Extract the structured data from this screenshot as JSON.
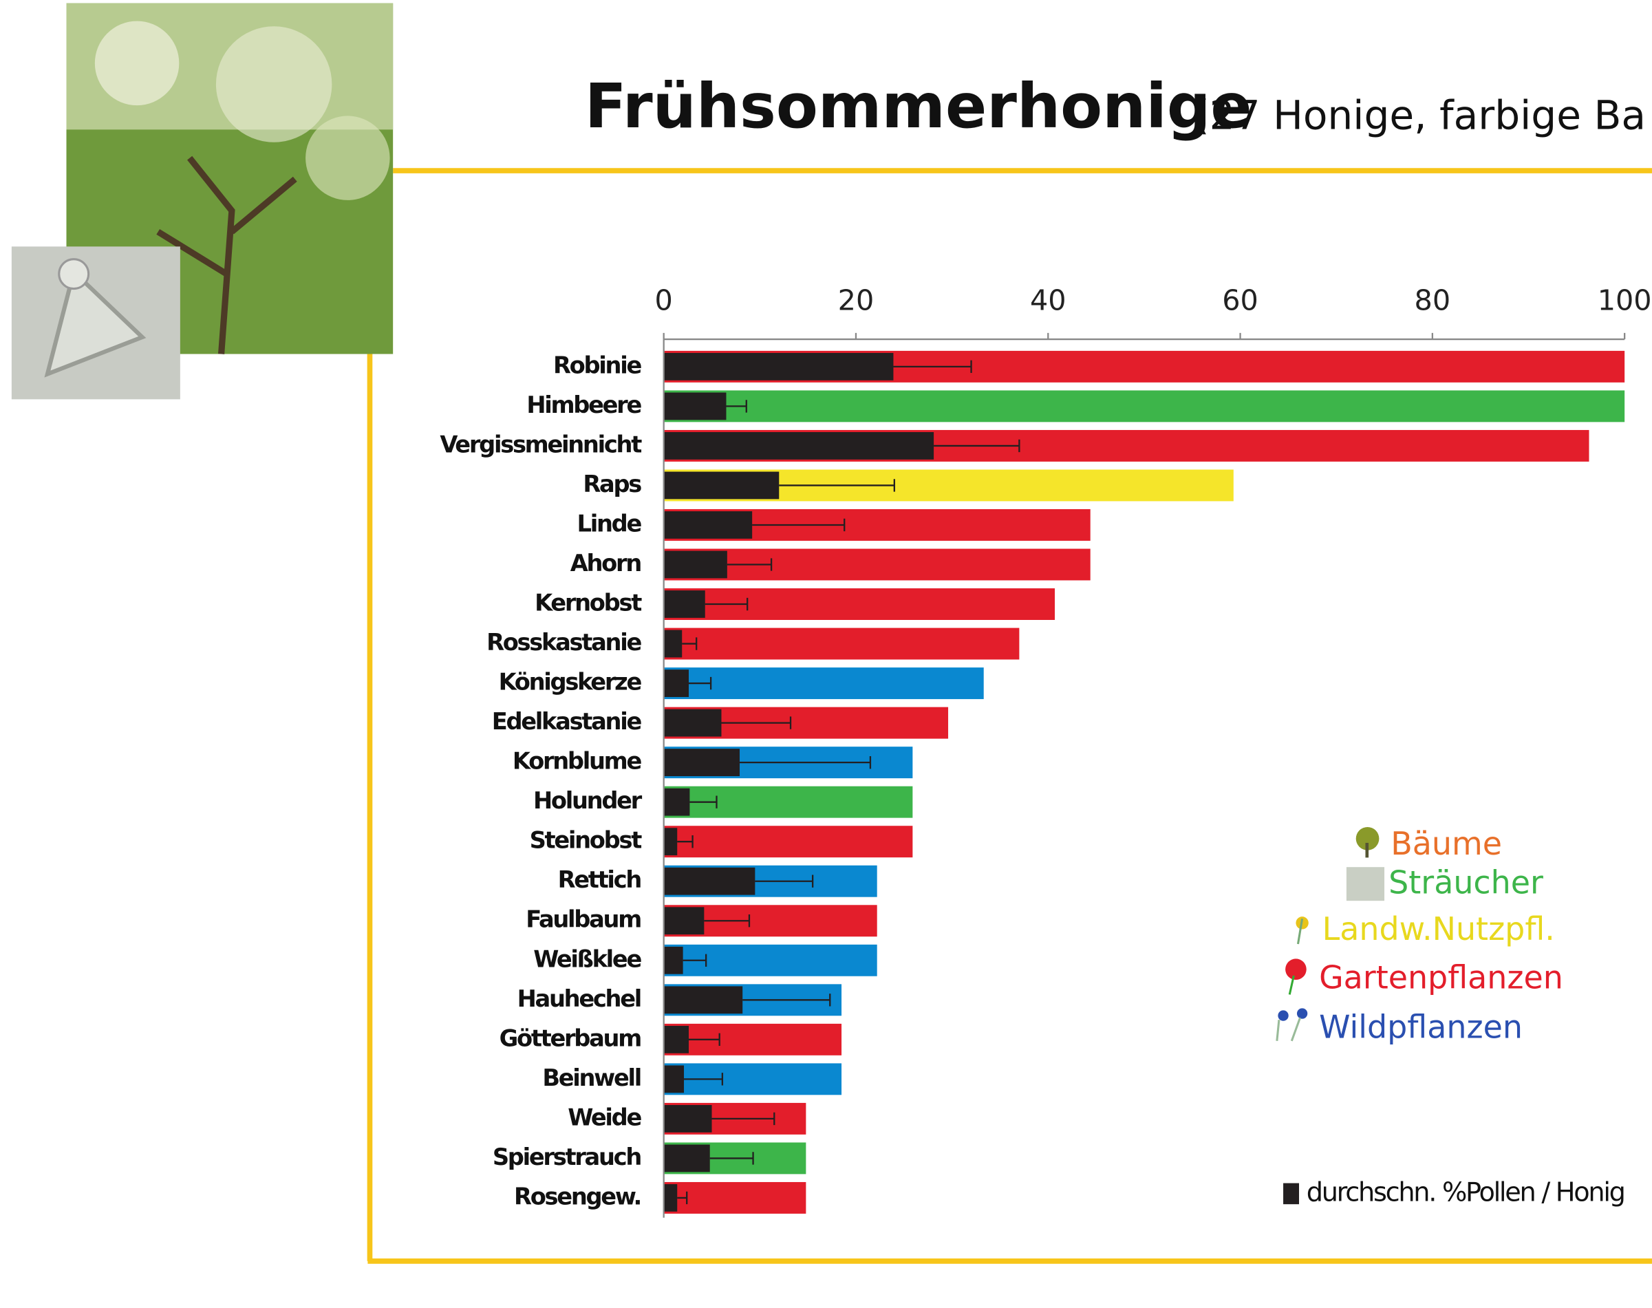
{
  "chart_data": {
    "type": "bar",
    "orientation": "horizontal",
    "title": "Frühsommerhonige",
    "subtitle": "(27 Honige, farbige Ba",
    "categories": [
      "Robinie",
      "Himbeere",
      "Vergissmeinnicht",
      "Raps",
      "Linde",
      "Ahorn",
      "Kernobst",
      "Rosskastanie",
      "Königskerze",
      "Edelkastanie",
      "Kornblume",
      "Holunder",
      "Steinobst",
      "Rettich",
      "Faulbaum",
      "Weißklee",
      "Hauhechel",
      "Götterbaum",
      "Beinwell",
      "Weide",
      "Spierstrauch",
      "Rosengew."
    ],
    "series": [
      {
        "colors": [
          "#e31e2b",
          "#3db54a",
          "#e31e2b",
          "#f5e52a",
          "#e31e2b",
          "#e31e2b",
          "#e31e2b",
          "#e31e2b",
          "#0a88d0",
          "#e31e2b",
          "#0a88d0",
          "#3db54a",
          "#e31e2b",
          "#0a88d0",
          "#e31e2b",
          "#0a88d0",
          "#0a88d0",
          "#e31e2b",
          "#0a88d0",
          "#e31e2b",
          "#3db54a",
          "#e31e2b"
        ],
        "values": [
          100,
          100,
          96.3,
          59.3,
          44.4,
          44.4,
          40.7,
          37,
          33.3,
          29.6,
          25.9,
          25.9,
          25.9,
          22.2,
          22.2,
          22.2,
          18.5,
          18.5,
          18.5,
          14.8,
          14.8,
          14.8
        ]
      },
      {
        "name": "durchschn. %Pollen / Honig",
        "color": "#231f20",
        "values": [
          23.9,
          6.5,
          28.1,
          12,
          9.2,
          6.6,
          4.3,
          1.9,
          2.6,
          6,
          7.9,
          2.7,
          1.4,
          9.5,
          4.2,
          2,
          8.2,
          2.6,
          2.1,
          5,
          4.8,
          1.4
        ],
        "errors": [
          8.1,
          2.1,
          8.9,
          12,
          9.6,
          4.6,
          4.4,
          1.5,
          2.3,
          7.2,
          13.6,
          2.8,
          1.6,
          6,
          4.7,
          2.4,
          9.1,
          3.2,
          4,
          6.5,
          4.5,
          1
        ]
      }
    ],
    "legend_groups": [
      {
        "label": "Bäume",
        "color": "#e8702a"
      },
      {
        "label": "Sträucher",
        "color": "#3db54a"
      },
      {
        "label": "Landw.Nutzpfl.",
        "color": "#e8d81e"
      },
      {
        "label": "Gartenpflanzen",
        "color": "#e31e2b"
      },
      {
        "label": "Wildpflanzen",
        "color": "#2a4fb0"
      }
    ],
    "xlim": [
      0,
      100
    ],
    "xticks": [
      0,
      20,
      40,
      60,
      80,
      100
    ]
  }
}
